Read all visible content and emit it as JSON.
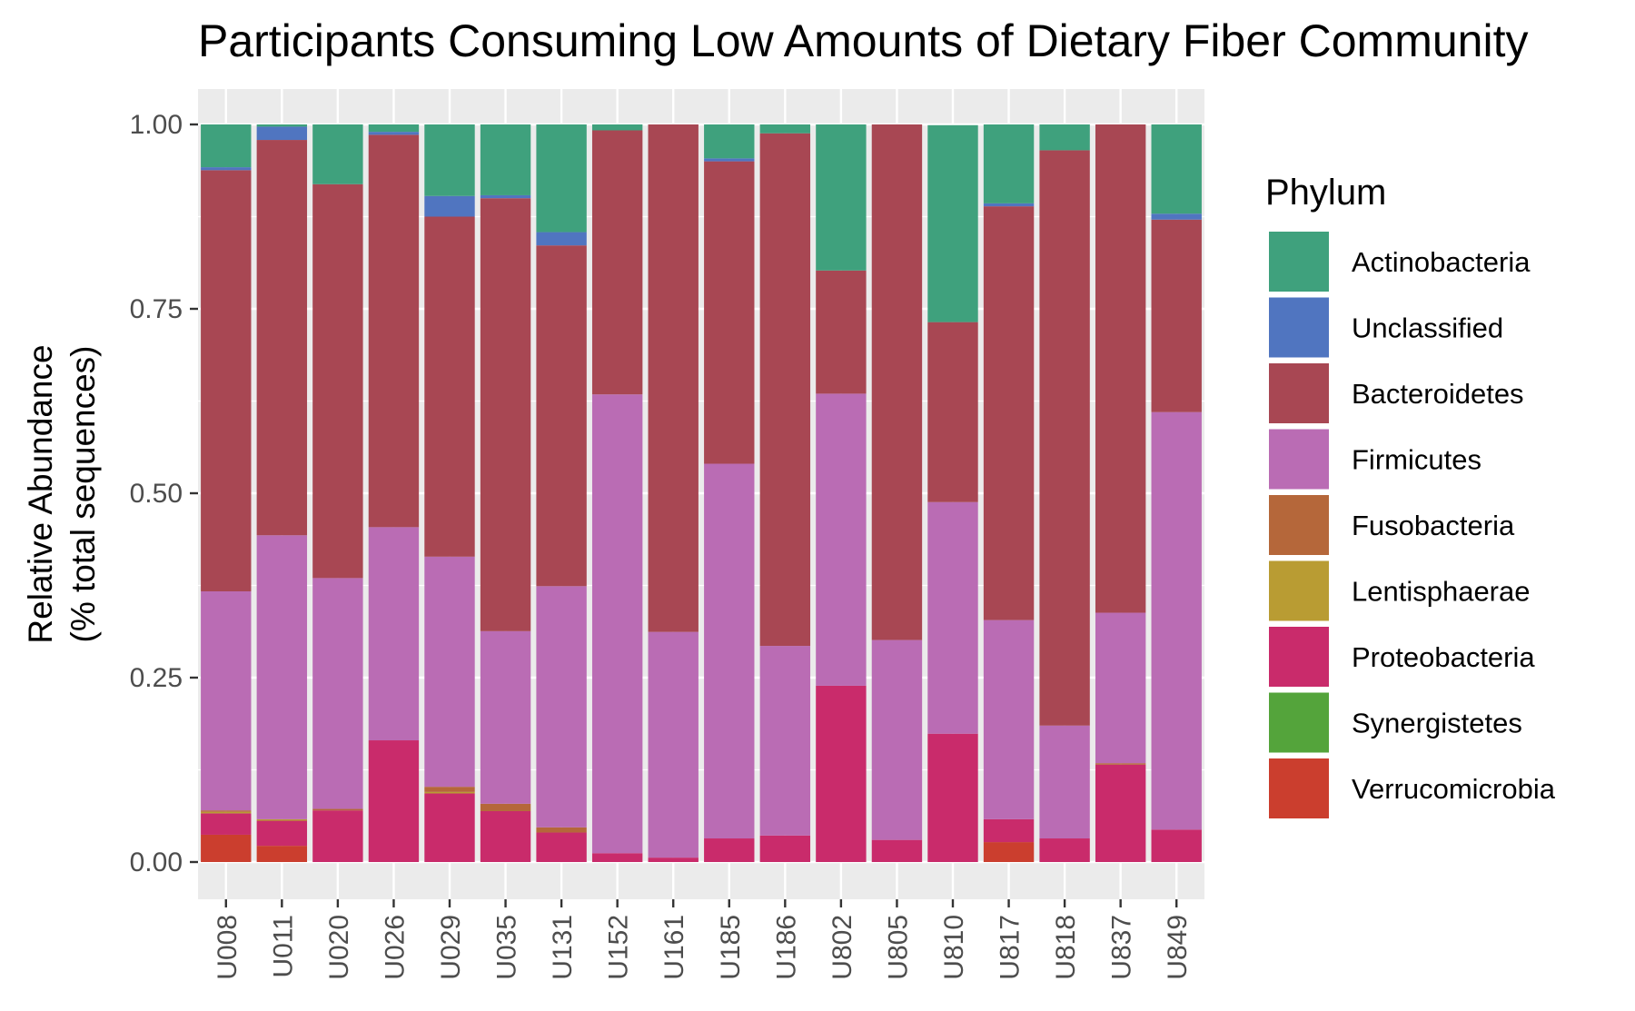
{
  "chart_data": {
    "type": "bar",
    "stacked": true,
    "title": "Participants Consuming Low Amounts of Dietary Fiber Community",
    "ylabel_line1": "Relative Abundance",
    "ylabel_line2": "(% total sequences)",
    "xlabel": "",
    "ylim": [
      0,
      1.05
    ],
    "yticks": [
      0,
      0.25,
      0.5,
      0.75,
      1.0
    ],
    "ytick_labels": [
      "0.00",
      "0.25",
      "0.50",
      "0.75",
      "1.00"
    ],
    "grid": true,
    "legend_position": "right",
    "legend_title": "Phylum",
    "categories": [
      "U008",
      "U011",
      "U020",
      "U026",
      "U029",
      "U035",
      "U131",
      "U152",
      "U161",
      "U185",
      "U186",
      "U802",
      "U805",
      "U810",
      "U817",
      "U818",
      "U837",
      "U849"
    ],
    "series": [
      {
        "name": "Verrucomicrobia",
        "color": "#CB3E2E",
        "values": [
          0.037,
          0.022,
          0,
          0,
          0,
          0,
          0,
          0,
          0,
          0,
          0,
          0,
          0,
          0,
          0.027,
          0,
          0,
          0
        ]
      },
      {
        "name": "Synergistetes",
        "color": "#54A43B",
        "values": [
          0,
          0,
          0,
          0,
          0,
          0,
          0,
          0,
          0,
          0,
          0,
          0,
          0,
          0,
          0,
          0,
          0,
          0
        ]
      },
      {
        "name": "Proteobacteria",
        "color": "#C92B6B",
        "values": [
          0.029,
          0.034,
          0.07,
          0.165,
          0.093,
          0.069,
          0.04,
          0.012,
          0.006,
          0.032,
          0.036,
          0.239,
          0.03,
          0.174,
          0.031,
          0.032,
          0.132,
          0.044
        ]
      },
      {
        "name": "Lentisphaerae",
        "color": "#B99C33",
        "values": [
          0.002,
          0.002,
          0,
          0,
          0.002,
          0,
          0,
          0,
          0,
          0,
          0,
          0,
          0,
          0,
          0,
          0,
          0,
          0
        ]
      },
      {
        "name": "Fusobacteria",
        "color": "#B5673A",
        "values": [
          0.002,
          0,
          0.002,
          0,
          0.007,
          0.01,
          0.007,
          0,
          0,
          0,
          0,
          0,
          0,
          0,
          0,
          0,
          0.002,
          0
        ]
      },
      {
        "name": "Firmicutes",
        "color": "#BA6CB4",
        "values": [
          0.297,
          0.385,
          0.313,
          0.289,
          0.312,
          0.234,
          0.327,
          0.622,
          0.306,
          0.508,
          0.257,
          0.396,
          0.271,
          0.314,
          0.27,
          0.153,
          0.204,
          0.566
        ]
      },
      {
        "name": "Bacteroidetes",
        "color": "#A84753",
        "values": [
          0.571,
          0.536,
          0.534,
          0.532,
          0.461,
          0.587,
          0.462,
          0.358,
          0.688,
          0.41,
          0.695,
          0.167,
          0.699,
          0.244,
          0.561,
          0.78,
          0.662,
          0.261
        ]
      },
      {
        "name": "Unclassified",
        "color": "#5075C0",
        "values": [
          0.004,
          0.018,
          0,
          0.004,
          0.028,
          0.004,
          0.018,
          0,
          0,
          0.004,
          0,
          0,
          0,
          0,
          0.004,
          0,
          0,
          0.008
        ]
      },
      {
        "name": "Actinobacteria",
        "color": "#3FA17D",
        "values": [
          0.058,
          0.003,
          0.081,
          0.01,
          0.097,
          0.096,
          0.146,
          0.008,
          0,
          0.046,
          0.012,
          0.198,
          0,
          0.267,
          0.107,
          0.035,
          0,
          0.121
        ]
      }
    ],
    "legend_order": [
      "Actinobacteria",
      "Unclassified",
      "Bacteroidetes",
      "Firmicutes",
      "Fusobacteria",
      "Lentisphaerae",
      "Proteobacteria",
      "Synergistetes",
      "Verrucomicrobia"
    ]
  }
}
